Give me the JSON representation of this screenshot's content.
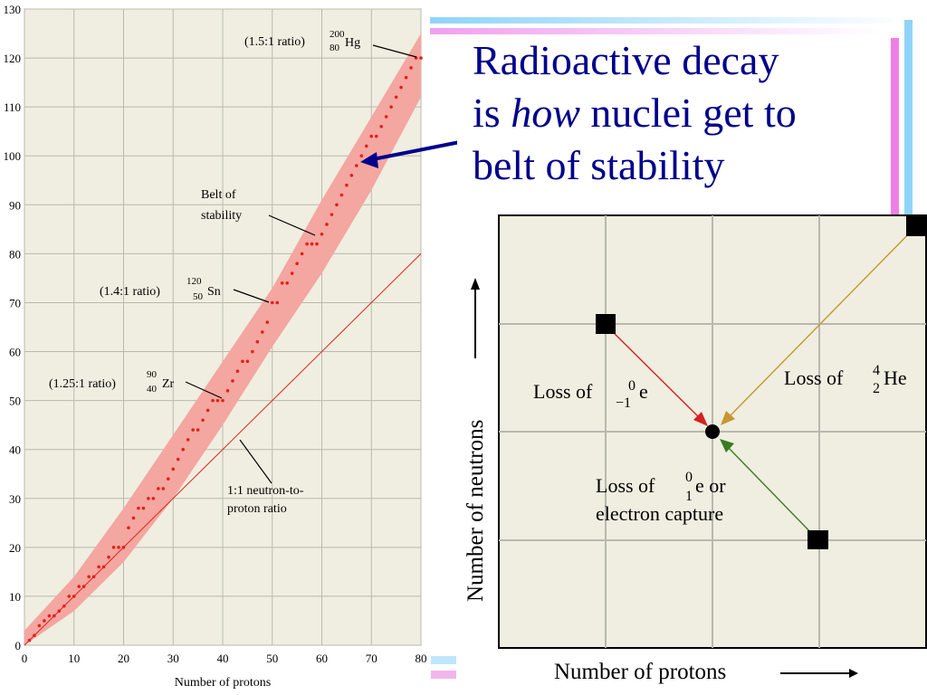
{
  "slide": {
    "title_line1": "Radioactive decay",
    "title_line2_pre": "is ",
    "title_line2_italic": "how",
    "title_line2_post": " nuclei get to",
    "title_line3": "belt of stability",
    "title_color": "#00008B"
  },
  "chart_data": [
    {
      "type": "scatter",
      "xlabel": "Number of protons",
      "ylabel": "",
      "xlim": [
        0,
        80
      ],
      "ylim": [
        0,
        130
      ],
      "xticks": [
        0,
        10,
        20,
        30,
        40,
        50,
        60,
        70,
        80
      ],
      "yticks": [
        0,
        10,
        20,
        30,
        40,
        50,
        60,
        70,
        80,
        90,
        100,
        110,
        120,
        130
      ],
      "grid": true,
      "series": [
        {
          "name": "",
          "color": "#e0221a",
          "points": [
            [
              1,
              1
            ],
            [
              2,
              2
            ],
            [
              3,
              4
            ],
            [
              4,
              5
            ],
            [
              5,
              6
            ],
            [
              6,
              6
            ],
            [
              7,
              7
            ],
            [
              8,
              8
            ],
            [
              9,
              10
            ],
            [
              10,
              10
            ],
            [
              11,
              12
            ],
            [
              12,
              12
            ],
            [
              13,
              14
            ],
            [
              14,
              14
            ],
            [
              15,
              16
            ],
            [
              16,
              16
            ],
            [
              17,
              18
            ],
            [
              18,
              20
            ],
            [
              19,
              20
            ],
            [
              20,
              20
            ],
            [
              21,
              24
            ],
            [
              22,
              26
            ],
            [
              23,
              28
            ],
            [
              24,
              28
            ],
            [
              25,
              30
            ],
            [
              26,
              30
            ],
            [
              27,
              32
            ],
            [
              28,
              32
            ],
            [
              29,
              34
            ],
            [
              30,
              36
            ],
            [
              31,
              38
            ],
            [
              32,
              40
            ],
            [
              33,
              42
            ],
            [
              34,
              44
            ],
            [
              35,
              44
            ],
            [
              36,
              46
            ],
            [
              37,
              48
            ],
            [
              38,
              50
            ],
            [
              39,
              50
            ],
            [
              40,
              50
            ],
            [
              41,
              52
            ],
            [
              42,
              54
            ],
            [
              43,
              56
            ],
            [
              44,
              58
            ],
            [
              45,
              58
            ],
            [
              46,
              60
            ],
            [
              47,
              62
            ],
            [
              48,
              64
            ],
            [
              49,
              66
            ],
            [
              50,
              70
            ],
            [
              51,
              70
            ],
            [
              52,
              74
            ],
            [
              53,
              74
            ],
            [
              54,
              76
            ],
            [
              55,
              78
            ],
            [
              56,
              80
            ],
            [
              57,
              82
            ],
            [
              58,
              82
            ],
            [
              59,
              82
            ],
            [
              60,
              84
            ],
            [
              61,
              86
            ],
            [
              62,
              88
            ],
            [
              63,
              90
            ],
            [
              64,
              92
            ],
            [
              65,
              94
            ],
            [
              66,
              96
            ],
            [
              67,
              98
            ],
            [
              68,
              100
            ],
            [
              69,
              102
            ],
            [
              70,
              104
            ],
            [
              71,
              104
            ],
            [
              72,
              106
            ],
            [
              73,
              108
            ],
            [
              74,
              110
            ],
            [
              75,
              112
            ],
            [
              76,
              114
            ],
            [
              77,
              116
            ],
            [
              78,
              118
            ],
            [
              79,
              120
            ],
            [
              80,
              120
            ]
          ]
        }
      ],
      "band": {
        "name": "Belt of stability",
        "color": "#f4a6a0",
        "lower": [
          [
            0,
            0
          ],
          [
            10,
            7
          ],
          [
            20,
            17
          ],
          [
            30,
            30
          ],
          [
            40,
            45
          ],
          [
            50,
            61
          ],
          [
            60,
            76
          ],
          [
            70,
            93
          ],
          [
            80,
            112
          ]
        ],
        "upper": [
          [
            0,
            3
          ],
          [
            10,
            14
          ],
          [
            20,
            28
          ],
          [
            30,
            43
          ],
          [
            40,
            58
          ],
          [
            50,
            73
          ],
          [
            60,
            91
          ],
          [
            70,
            108
          ],
          [
            80,
            125
          ]
        ]
      },
      "reference_line": {
        "name": "1:1 neutron-to-proton ratio",
        "color": "#e0221a",
        "from": [
          0,
          0
        ],
        "to": [
          80,
          80
        ]
      },
      "annotations": {
        "hg": {
          "ratio": "(1.5:1 ratio)",
          "mass": "200",
          "number": "80",
          "symbol": "Hg",
          "point": [
            80,
            120
          ]
        },
        "belt_line1": "Belt of",
        "belt_line2": "stability",
        "sn": {
          "ratio": "(1.4:1 ratio)",
          "mass": "120",
          "number": "50",
          "symbol": "Sn",
          "point": [
            50,
            70
          ]
        },
        "zr": {
          "ratio": "(1.25:1 ratio)",
          "mass": "90",
          "number": "40",
          "symbol": "Zr",
          "point": [
            40,
            50
          ]
        },
        "ratio_line1": "1:1 neutron-to-",
        "ratio_line2": "proton ratio"
      },
      "background": "#efeee0"
    },
    {
      "type": "diagram",
      "xlabel": "Number of protons",
      "ylabel": "Number of neutrons",
      "grid": true,
      "decays": {
        "beta_minus": {
          "label_pre": "Loss of ",
          "top": "0",
          "bottom": "−1",
          "symbol": "e",
          "color": "#d42020"
        },
        "alpha": {
          "label_pre": "Loss of ",
          "top": "4",
          "bottom": "2",
          "symbol": "He",
          "color": "#c89530"
        },
        "positron": {
          "label_pre": "Loss of ",
          "top": "0",
          "bottom": "1",
          "symbol": "e",
          "label_post": " or",
          "line2": "electron capture",
          "color": "#3a7a20"
        }
      },
      "background": "#efeee0"
    }
  ],
  "decor": {
    "bar_blue": "#8fd4f8",
    "bar_pink": "#f07ee8",
    "arrow_color": "#00008B"
  }
}
